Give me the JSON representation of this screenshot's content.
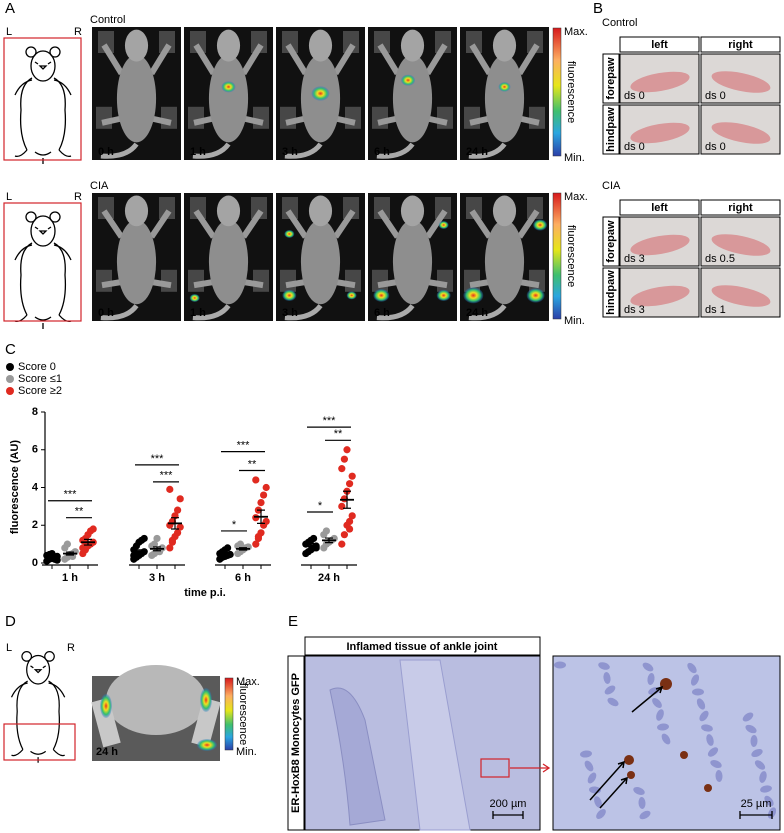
{
  "panel_a": {
    "label": "A",
    "control": "Control",
    "cia": "CIA",
    "left": "L",
    "right": "R",
    "times": [
      "0 h",
      "1 h",
      "3 h",
      "6 h",
      "24 h"
    ],
    "scale_max": "Max.",
    "scale_min": "Min.",
    "scale_title": "fluorescence"
  },
  "panel_b": {
    "label": "B",
    "control": "Control",
    "cia": "CIA",
    "columns": [
      "left",
      "right"
    ],
    "rows": [
      "forepaw",
      "hindpaw"
    ],
    "control_scores": [
      [
        "ds 0",
        "ds 0"
      ],
      [
        "ds 0",
        "ds 0"
      ]
    ],
    "cia_scores": [
      [
        "ds 3",
        "ds 0.5"
      ],
      [
        "ds 3",
        "ds 1"
      ]
    ]
  },
  "panel_c": {
    "label": "C"
  },
  "chart_data": {
    "type": "dotplot",
    "x_label": "time p.i.",
    "y_label": "fluorescence (AU)",
    "categories": [
      "1 h",
      "3 h",
      "6 h",
      "24 h"
    ],
    "ylim": [
      0,
      8
    ],
    "yticks": [
      0,
      2,
      4,
      6,
      8
    ],
    "series": [
      {
        "name": "Score  0",
        "color": "#000000",
        "values": [
          0.3,
          0.6,
          0.45,
          0.95
        ],
        "errors": [
          0.05,
          0.1,
          0.07,
          0.08
        ],
        "points": [
          [
            0.1,
            0.2,
            0.25,
            0.3,
            0.35,
            0.4,
            0.45,
            0.5,
            0.2,
            0.15
          ],
          [
            0.2,
            0.3,
            0.4,
            0.5,
            0.6,
            0.7,
            0.9,
            1.1,
            1.2,
            1.3,
            0.4,
            0.5
          ],
          [
            0.2,
            0.3,
            0.35,
            0.4,
            0.45,
            0.5,
            0.6,
            0.7,
            0.8
          ],
          [
            0.5,
            0.6,
            0.7,
            0.8,
            0.9,
            1.0,
            1.1,
            1.2,
            1.3,
            0.8
          ]
        ]
      },
      {
        "name": "Score ≤1",
        "color": "#9a9a9a",
        "values": [
          0.5,
          0.75,
          0.75,
          1.2
        ],
        "errors": [
          0.08,
          0.1,
          0.06,
          0.12
        ],
        "points": [
          [
            0.2,
            0.3,
            0.4,
            0.5,
            0.6,
            0.8,
            1.0,
            0.45,
            0.35
          ],
          [
            0.4,
            0.5,
            0.6,
            0.7,
            0.8,
            0.9,
            1.0,
            1.3,
            0.6
          ],
          [
            0.5,
            0.6,
            0.7,
            0.8,
            0.85,
            0.9,
            1.0
          ],
          [
            0.8,
            1.0,
            1.1,
            1.2,
            1.3,
            1.5,
            1.7
          ]
        ]
      },
      {
        "name": "Score ≥2",
        "color": "#e02a20",
        "values": [
          1.1,
          2.1,
          2.45,
          3.35
        ],
        "errors": [
          0.15,
          0.3,
          0.35,
          0.45
        ],
        "points": [
          [
            0.5,
            0.7,
            0.9,
            1.0,
            1.1,
            1.2,
            1.3,
            1.5,
            1.7,
            1.8,
            0.8,
            1.1
          ],
          [
            0.8,
            1.1,
            1.4,
            1.6,
            1.9,
            2.0,
            2.2,
            2.5,
            2.8,
            3.4,
            3.9,
            1.2
          ],
          [
            1.0,
            1.3,
            1.6,
            2.0,
            2.2,
            2.4,
            2.8,
            3.2,
            3.6,
            4.0,
            4.4,
            1.4
          ],
          [
            1.0,
            1.5,
            2.0,
            2.2,
            2.5,
            3.0,
            3.4,
            3.8,
            4.2,
            4.6,
            5.0,
            5.5,
            6.0,
            1.8
          ]
        ]
      }
    ],
    "annotations": [
      {
        "text": "***",
        "category": 0,
        "from": 0,
        "to": 2,
        "y": 3.3
      },
      {
        "text": "**",
        "category": 0,
        "from": 1,
        "to": 2,
        "y": 2.4
      },
      {
        "text": "***",
        "category": 1,
        "from": 0,
        "to": 2,
        "y": 5.2
      },
      {
        "text": "***",
        "category": 1,
        "from": 1,
        "to": 2,
        "y": 4.3
      },
      {
        "text": "*",
        "category": 2,
        "from": 0,
        "to": 1,
        "y": 1.7
      },
      {
        "text": "***",
        "category": 2,
        "from": 0,
        "to": 2,
        "y": 5.9
      },
      {
        "text": "**",
        "category": 2,
        "from": 1,
        "to": 2,
        "y": 4.9
      },
      {
        "text": "*",
        "category": 3,
        "from": 0,
        "to": 1,
        "y": 2.7
      },
      {
        "text": "***",
        "category": 3,
        "from": 0,
        "to": 2,
        "y": 7.2
      },
      {
        "text": "**",
        "category": 3,
        "from": 1,
        "to": 2,
        "y": 6.5
      }
    ]
  },
  "panel_d": {
    "label": "D",
    "left": "L",
    "right": "R",
    "time": "24 h",
    "scale_max": "Max.",
    "scale_min": "Min.",
    "scale_title": "fluorescence"
  },
  "panel_e": {
    "label": "E",
    "title": "Inflamed tissue of ankle joint",
    "side_label": "ER-HoxB8 Monocytes GFP",
    "scale_bar_left": "200 µm",
    "scale_bar_right": "25 µm"
  }
}
